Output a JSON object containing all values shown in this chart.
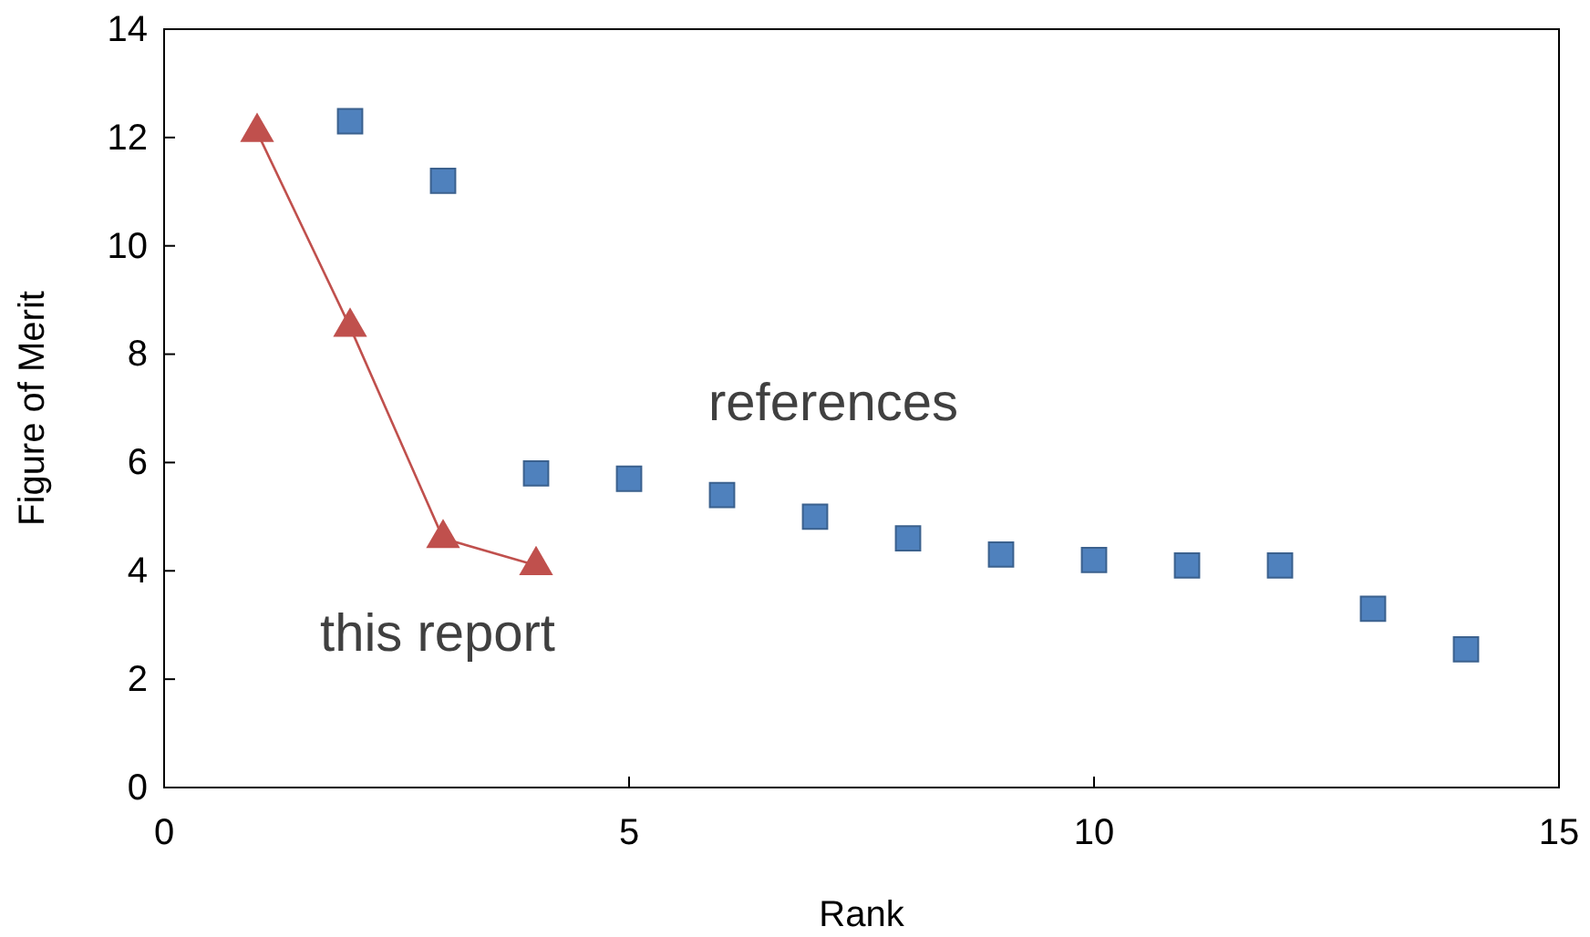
{
  "chart_data": {
    "type": "scatter",
    "xlabel": "Rank",
    "ylabel": "Figure of Merit",
    "xlim": [
      0,
      15
    ],
    "xticks": [
      0,
      5,
      10,
      15
    ],
    "ylim": [
      0,
      14
    ],
    "yticks": [
      0,
      2,
      4,
      6,
      8,
      10,
      12,
      14
    ],
    "grid": false,
    "legend": false,
    "series": [
      {
        "name": "references",
        "marker": "square",
        "color": "#4f81bd",
        "x": [
          2,
          3,
          4,
          5,
          6,
          7,
          8,
          9,
          10,
          11,
          12,
          13,
          14
        ],
        "values": [
          12.3,
          11.2,
          5.8,
          5.7,
          5.4,
          5.0,
          4.6,
          4.3,
          4.2,
          4.1,
          4.1,
          3.3,
          2.55
        ]
      },
      {
        "name": "this report",
        "type": "line",
        "marker": "triangle",
        "color": "#c0504d",
        "x": [
          1,
          2,
          3,
          4
        ],
        "values": [
          12.1,
          8.5,
          4.6,
          4.1
        ]
      }
    ]
  }
}
